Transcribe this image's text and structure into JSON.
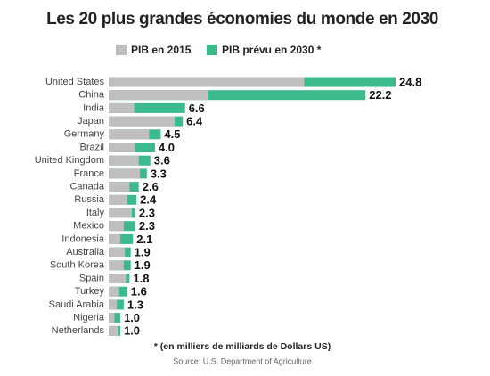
{
  "chart_data": {
    "type": "bar",
    "orientation": "horizontal",
    "overlap": true,
    "title": "Les 20 plus grandes économies du monde en 2030",
    "categories": [
      "United States",
      "China",
      "India",
      "Japan",
      "Germany",
      "Brazil",
      "United Kingdom",
      "France",
      "Canada",
      "Russia",
      "Italy",
      "Mexico",
      "Indonesia",
      "Australia",
      "South Korea",
      "Spain",
      "Turkey",
      "Saudi Arabia",
      "Nigeria",
      "Netherlands"
    ],
    "series": [
      {
        "name": "PIB en 2015",
        "color": "#bfbfbf",
        "values": [
          16.9,
          8.6,
          2.2,
          5.7,
          3.5,
          2.3,
          2.6,
          2.7,
          1.8,
          1.6,
          2.0,
          1.3,
          1.0,
          1.4,
          1.3,
          1.5,
          0.9,
          0.7,
          0.5,
          0.8
        ]
      },
      {
        "name": "PIB prévu en 2030 *",
        "color": "#3dba8c",
        "values": [
          24.8,
          22.2,
          6.6,
          6.4,
          4.5,
          4,
          3.6,
          3.3,
          2.6,
          2.4,
          2.3,
          2.3,
          2.1,
          1.9,
          1.9,
          1.8,
          1.6,
          1.3,
          1,
          1
        ],
        "value_labels": [
          "24.8",
          "22.2",
          "6.6",
          "6.4",
          "4.5",
          "4.0",
          "3.6",
          "3.3",
          "2.6",
          "2.4",
          "2.3",
          "2.3",
          "2.1",
          "1.9",
          "1.9",
          "1.8",
          "1.6",
          "1.3",
          "1.0",
          "1.0"
        ]
      }
    ],
    "footnote": "* (en milliers de milliards de Dollars US)",
    "source": "Source: U.S. Department of Agriculture"
  }
}
